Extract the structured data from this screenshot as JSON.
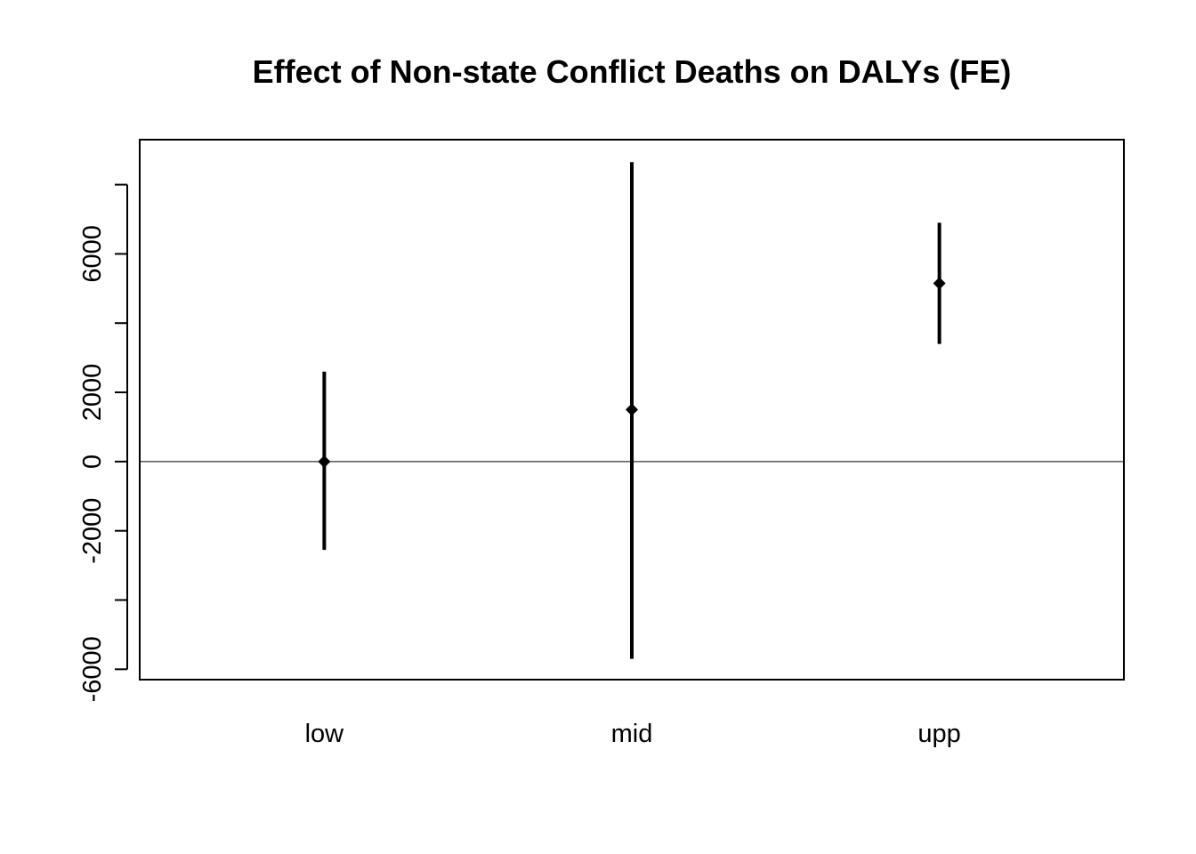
{
  "chart_data": {
    "type": "errorbar",
    "title": "Effect of Non-state Conflict Deaths on DALYs (FE)",
    "xlabel": "",
    "ylabel": "",
    "categories": [
      "low",
      "mid",
      "upp"
    ],
    "estimates": [
      0,
      1500,
      5150
    ],
    "lower": [
      -2550,
      -5700,
      3400
    ],
    "upper": [
      2600,
      8650,
      6900
    ],
    "ylim": [
      -6300,
      9300
    ],
    "yticks": [
      -6000,
      -4000,
      -2000,
      0,
      2000,
      4000,
      6000,
      8000
    ],
    "ytick_labels": [
      "-6000",
      "",
      "-2000",
      "0",
      "2000",
      "",
      "6000",
      ""
    ],
    "reference_line": 0,
    "color": "#000000"
  }
}
